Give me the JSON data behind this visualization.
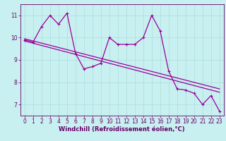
{
  "title": "",
  "xlabel": "Windchill (Refroidissement éolien,°C)",
  "ylabel": "",
  "bg_color": "#c8f0f0",
  "line_color": "#990099",
  "grid_color": "#aadddd",
  "axis_color": "#660066",
  "xlim": [
    -0.5,
    23.5
  ],
  "ylim": [
    6.5,
    11.5
  ],
  "xticks": [
    0,
    1,
    2,
    3,
    4,
    5,
    6,
    7,
    8,
    9,
    10,
    11,
    12,
    13,
    14,
    15,
    16,
    17,
    18,
    19,
    20,
    21,
    22,
    23
  ],
  "yticks": [
    7,
    8,
    9,
    10,
    11
  ],
  "data_x": [
    0,
    1,
    2,
    3,
    4,
    5,
    6,
    7,
    8,
    9,
    10,
    11,
    12,
    13,
    14,
    15,
    16,
    17,
    18,
    19,
    20,
    21,
    22,
    23
  ],
  "data_y": [
    9.9,
    9.8,
    10.5,
    11.0,
    10.6,
    11.1,
    9.3,
    8.6,
    8.7,
    8.85,
    10.0,
    9.7,
    9.7,
    9.7,
    10.0,
    11.0,
    10.3,
    8.5,
    7.7,
    7.65,
    7.5,
    7.0,
    7.4,
    6.7
  ],
  "trend1_x": [
    0,
    23
  ],
  "trend1_y": [
    9.95,
    7.7
  ],
  "trend2_x": [
    0,
    23
  ],
  "trend2_y": [
    9.85,
    7.55
  ],
  "font_size": 5.5,
  "tick_font_size": 5.5,
  "xlabel_font_size": 6.0,
  "line_width": 0.9,
  "marker_size": 2.5
}
